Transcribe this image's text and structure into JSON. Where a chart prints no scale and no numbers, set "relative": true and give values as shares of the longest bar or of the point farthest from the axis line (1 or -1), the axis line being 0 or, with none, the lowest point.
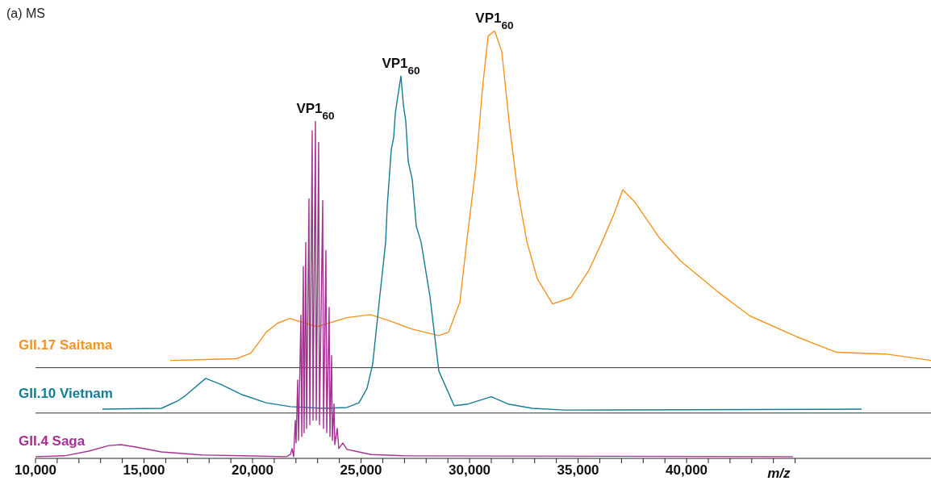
{
  "chart_data": {
    "type": "line",
    "title": "(a) MS",
    "xlabel": "m/z",
    "relative": true,
    "xlim": [
      10000,
      51260
    ],
    "xticks": [
      {
        "value": 10000,
        "label": "10,000"
      },
      {
        "value": 11000,
        "label": null
      },
      {
        "value": 12000,
        "label": null
      },
      {
        "value": 13000,
        "label": null
      },
      {
        "value": 14000,
        "label": null
      },
      {
        "value": 15000,
        "label": "15,000"
      },
      {
        "value": 16000,
        "label": null
      },
      {
        "value": 17000,
        "label": null
      },
      {
        "value": 18000,
        "label": null
      },
      {
        "value": 19000,
        "label": null
      },
      {
        "value": 20000,
        "label": "20,000"
      },
      {
        "value": 21000,
        "label": null
      },
      {
        "value": 22000,
        "label": null
      },
      {
        "value": 23000,
        "label": null
      },
      {
        "value": 24000,
        "label": null
      },
      {
        "value": 25000,
        "label": "25,000"
      },
      {
        "value": 26000,
        "label": null
      },
      {
        "value": 27000,
        "label": null
      },
      {
        "value": 28000,
        "label": null
      },
      {
        "value": 29000,
        "label": null
      },
      {
        "value": 30000,
        "label": "30,000"
      },
      {
        "value": 31000,
        "label": null
      },
      {
        "value": 32000,
        "label": null
      },
      {
        "value": 33000,
        "label": null
      },
      {
        "value": 34000,
        "label": null
      },
      {
        "value": 35000,
        "label": "35,000"
      },
      {
        "value": 36000,
        "label": null
      },
      {
        "value": 37000,
        "label": null
      },
      {
        "value": 38000,
        "label": null
      },
      {
        "value": 39000,
        "label": null
      },
      {
        "value": 40000,
        "label": "40,000"
      },
      {
        "value": 41000,
        "label": null
      },
      {
        "value": 42000,
        "label": null
      },
      {
        "value": 43000,
        "label": null
      },
      {
        "value": 44000,
        "label": null
      },
      {
        "value": 45000,
        "label": null
      }
    ],
    "series": [
      {
        "name": "GII.17 Saitama",
        "color": "#f7931e",
        "x": [
          16207,
          19255,
          19924,
          20631,
          21151,
          21709,
          22973,
          24348,
          25426,
          26244,
          27359,
          28585,
          29031,
          29551,
          29886,
          30295,
          30592,
          30852,
          31150,
          31484,
          31856,
          32190,
          32637,
          33120,
          33826,
          34681,
          35499,
          36093,
          36651,
          37060,
          37618,
          38770,
          39736,
          41446,
          42918,
          45089,
          46910,
          49177,
          51259
        ],
        "values": [
          0.229,
          0.233,
          0.246,
          0.295,
          0.316,
          0.327,
          0.308,
          0.329,
          0.336,
          0.323,
          0.302,
          0.287,
          0.295,
          0.365,
          0.514,
          0.684,
          0.864,
          0.987,
          1,
          0.951,
          0.771,
          0.635,
          0.507,
          0.42,
          0.361,
          0.376,
          0.44,
          0.505,
          0.571,
          0.628,
          0.599,
          0.514,
          0.461,
          0.389,
          0.333,
          0.284,
          0.248,
          0.244,
          0.229
        ]
      },
      {
        "name": "GII.10 Vietnam",
        "color": "#157c95",
        "x": [
          13085,
          15799,
          16542,
          16914,
          17843,
          18586,
          19516,
          20631,
          21746,
          23233,
          24348,
          24905,
          25277,
          25537,
          25835,
          26132,
          26207,
          26392,
          26504,
          26578,
          26690,
          26838,
          26950,
          27061,
          27173,
          27359,
          27545,
          27768,
          28177,
          28585,
          29291,
          29923,
          31001,
          31781,
          32897,
          34384,
          48062
        ],
        "values": [
          0.115,
          0.117,
          0.134,
          0.147,
          0.187,
          0.172,
          0.149,
          0.13,
          0.121,
          0.117,
          0.119,
          0.13,
          0.164,
          0.221,
          0.365,
          0.505,
          0.59,
          0.722,
          0.75,
          0.807,
          0.845,
          0.894,
          0.826,
          0.788,
          0.694,
          0.652,
          0.543,
          0.505,
          0.378,
          0.204,
          0.123,
          0.127,
          0.144,
          0.127,
          0.117,
          0.113,
          0.115
        ]
      },
      {
        "name": "GII.4 Saga",
        "color": "#a53292",
        "x": [
          10000,
          11338,
          12453,
          13382,
          13940,
          14683,
          15799,
          17657,
          19516,
          21560,
          21746,
          21820,
          21894,
          21969,
          22006,
          22080,
          22117,
          22229,
          22266,
          22340,
          22378,
          22452,
          22489,
          22601,
          22638,
          22749,
          22786,
          22898,
          22935,
          23047,
          23084,
          23233,
          23270,
          23381,
          23419,
          23530,
          23567,
          23642,
          23679,
          23753,
          23790,
          23902,
          23976,
          24162,
          24348,
          24720,
          25463,
          26950,
          44903
        ],
        "values": [
          0.004,
          0.006,
          0.017,
          0.03,
          0.032,
          0.026,
          0.015,
          0.008,
          0.006,
          0.004,
          0.009,
          0.023,
          0.004,
          0.089,
          0.036,
          0.183,
          0.042,
          0.335,
          0.051,
          0.448,
          0.06,
          0.505,
          0.07,
          0.607,
          0.079,
          0.766,
          0.089,
          0.788,
          0.089,
          0.739,
          0.079,
          0.603,
          0.07,
          0.486,
          0.06,
          0.353,
          0.051,
          0.24,
          0.042,
          0.127,
          0.032,
          0.07,
          0.023,
          0.036,
          0.021,
          0.017,
          0.009,
          0.006,
          0.004
        ]
      }
    ],
    "ref_lines": [
      {
        "axis": "y",
        "value": 0.212,
        "color": "#333333"
      },
      {
        "axis": "y",
        "value": 0.106,
        "color": "#333333"
      }
    ],
    "annotations": [
      {
        "text": "VP1$_{60}$",
        "x": 22900,
        "y": 0.788
      },
      {
        "text": "VP1$_{60}$",
        "x": 26840,
        "y": 0.894
      },
      {
        "text": "VP1$_{60}$",
        "x": 31150,
        "y": 1
      }
    ],
    "grid": false,
    "legend": false,
    "marker": "none",
    "line_style": "solid"
  }
}
